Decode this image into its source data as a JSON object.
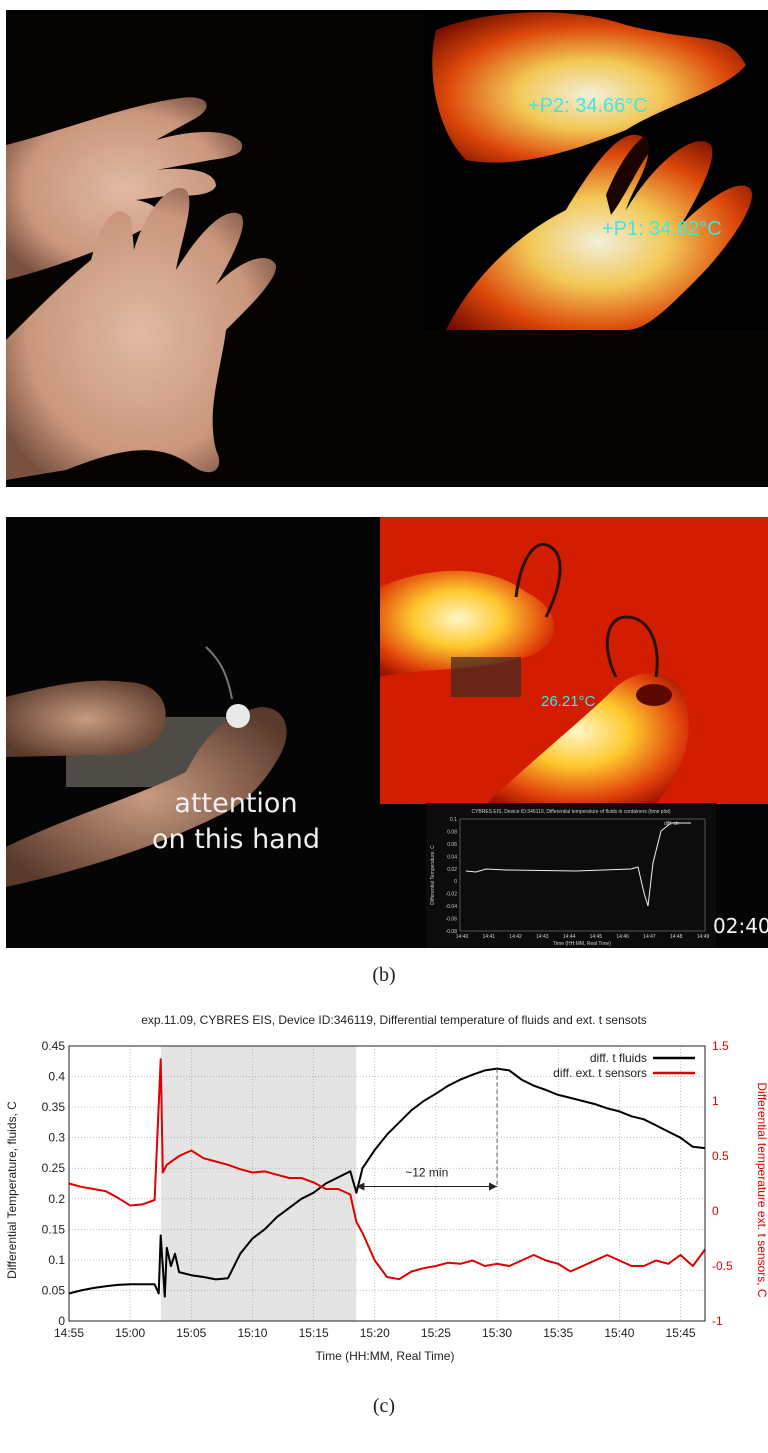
{
  "panel_a": {
    "thermal_labels": [
      "+P2: 34.66°C",
      "+P1: 34.82°C"
    ]
  },
  "panel_b": {
    "attention_line1": "attention",
    "attention_line2": "on this hand",
    "thermal_label": "26.21°C",
    "timer": "02:40",
    "inset_title": "CYBRES EIS, Device ID:346119, Differential temperature of fluids in containers (time plot)",
    "inset_ylabel": "Differential Temperature, C",
    "inset_xlabel": "Time (HH:MM, Real Time)",
    "inset_legend": "diff. ch",
    "inset_yticks": [
      "0.1",
      "0.08",
      "0.06",
      "0.04",
      "0.02",
      "0",
      "-0.02",
      "-0.04",
      "-0.06",
      "-0.08"
    ],
    "inset_xticks": [
      "14:40",
      "14:41",
      "14:42",
      "14:43",
      "14:44",
      "14:45",
      "14:46",
      "14:47",
      "14:48",
      "14:49"
    ],
    "caption": "(b)"
  },
  "caption_c": "(c)",
  "chart_data": {
    "type": "line",
    "title": "exp.11.09, CYBRES EIS, Device ID:346119, Differential temperature of fluids and ext. t sensots",
    "xlabel": "Time (HH:MM, Real Time)",
    "ylabel": "Differential Temperature, fluids, C",
    "y2label": "Differential temperature ext. t sensors, C",
    "xlim": [
      "14:55",
      "15:47"
    ],
    "ylim": [
      0,
      0.45
    ],
    "y2lim": [
      -1,
      1.5
    ],
    "x_ticks": [
      "14:55",
      "15:00",
      "15:05",
      "15:10",
      "15:15",
      "15:20",
      "15:25",
      "15:30",
      "15:35",
      "15:40",
      "15:45"
    ],
    "y_ticks": [
      "0",
      "0.05",
      "0.1",
      "0.15",
      "0.2",
      "0.25",
      "0.3",
      "0.35",
      "0.4",
      "0.45"
    ],
    "y2_ticks": [
      "-1",
      "-0.5",
      "0",
      "0.5",
      "1",
      "1.5"
    ],
    "grid": true,
    "legend_position": "top-right",
    "shaded_interval": [
      "15:02:30",
      "15:18:30"
    ],
    "annotation": {
      "text": "~12 min",
      "from": "15:18:30",
      "to": "15:30"
    },
    "colors": {
      "fluids": "#000000",
      "sensors": "#dd0000",
      "shade": "#e4e4e4"
    },
    "series": [
      {
        "name": "diff. t fluids",
        "axis": "left",
        "x": [
          "14:55",
          "14:56",
          "14:57",
          "14:58",
          "14:59",
          "15:00",
          "15:01",
          "15:02",
          "15:02:20",
          "15:02:30",
          "15:02:50",
          "15:03",
          "15:03:20",
          "15:03:40",
          "15:04",
          "15:05",
          "15:06",
          "15:07",
          "15:08",
          "15:09",
          "15:10",
          "15:11",
          "15:12",
          "15:13",
          "15:14",
          "15:15",
          "15:16",
          "15:17",
          "15:18",
          "15:18:30",
          "15:19",
          "15:20",
          "15:21",
          "15:22",
          "15:23",
          "15:24",
          "15:25",
          "15:26",
          "15:27",
          "15:28",
          "15:29",
          "15:30",
          "15:31",
          "15:32",
          "15:33",
          "15:34",
          "15:35",
          "15:36",
          "15:37",
          "15:38",
          "15:39",
          "15:40",
          "15:41",
          "15:42",
          "15:43",
          "15:44",
          "15:45",
          "15:46",
          "15:47"
        ],
        "values": [
          0.045,
          0.05,
          0.054,
          0.057,
          0.059,
          0.06,
          0.06,
          0.06,
          0.045,
          0.14,
          0.04,
          0.12,
          0.09,
          0.11,
          0.08,
          0.075,
          0.072,
          0.068,
          0.07,
          0.11,
          0.135,
          0.15,
          0.17,
          0.185,
          0.2,
          0.21,
          0.225,
          0.235,
          0.245,
          0.21,
          0.25,
          0.28,
          0.305,
          0.325,
          0.345,
          0.36,
          0.372,
          0.385,
          0.395,
          0.403,
          0.41,
          0.413,
          0.41,
          0.395,
          0.385,
          0.378,
          0.37,
          0.365,
          0.36,
          0.355,
          0.348,
          0.343,
          0.335,
          0.33,
          0.32,
          0.31,
          0.3,
          0.285,
          0.283
        ]
      },
      {
        "name": "diff. ext. t sensors",
        "axis": "right",
        "x": [
          "14:55",
          "14:56",
          "14:57",
          "14:58",
          "14:59",
          "15:00",
          "15:01",
          "15:02",
          "15:02:30",
          "15:02:40",
          "15:03",
          "15:04",
          "15:05",
          "15:06",
          "15:07",
          "15:08",
          "15:09",
          "15:10",
          "15:11",
          "15:12",
          "15:13",
          "15:14",
          "15:15",
          "15:16",
          "15:17",
          "15:18",
          "15:18:30",
          "15:19",
          "15:20",
          "15:21",
          "15:22",
          "15:23",
          "15:24",
          "15:25",
          "15:26",
          "15:27",
          "15:28",
          "15:29",
          "15:30",
          "15:31",
          "15:32",
          "15:33",
          "15:34",
          "15:35",
          "15:36",
          "15:37",
          "15:38",
          "15:39",
          "15:40",
          "15:41",
          "15:42",
          "15:43",
          "15:44",
          "15:45",
          "15:46",
          "15:47"
        ],
        "values": [
          0.25,
          0.22,
          0.2,
          0.18,
          0.12,
          0.05,
          0.06,
          0.1,
          1.38,
          0.35,
          0.42,
          0.5,
          0.55,
          0.48,
          0.45,
          0.42,
          0.38,
          0.35,
          0.36,
          0.33,
          0.3,
          0.3,
          0.26,
          0.2,
          0.2,
          0.15,
          -0.1,
          -0.2,
          -0.45,
          -0.6,
          -0.62,
          -0.55,
          -0.52,
          -0.5,
          -0.47,
          -0.48,
          -0.45,
          -0.5,
          -0.48,
          -0.5,
          -0.45,
          -0.4,
          -0.45,
          -0.48,
          -0.55,
          -0.5,
          -0.45,
          -0.4,
          -0.45,
          -0.5,
          -0.5,
          -0.45,
          -0.48,
          -0.4,
          -0.5,
          -0.35
        ]
      }
    ]
  }
}
